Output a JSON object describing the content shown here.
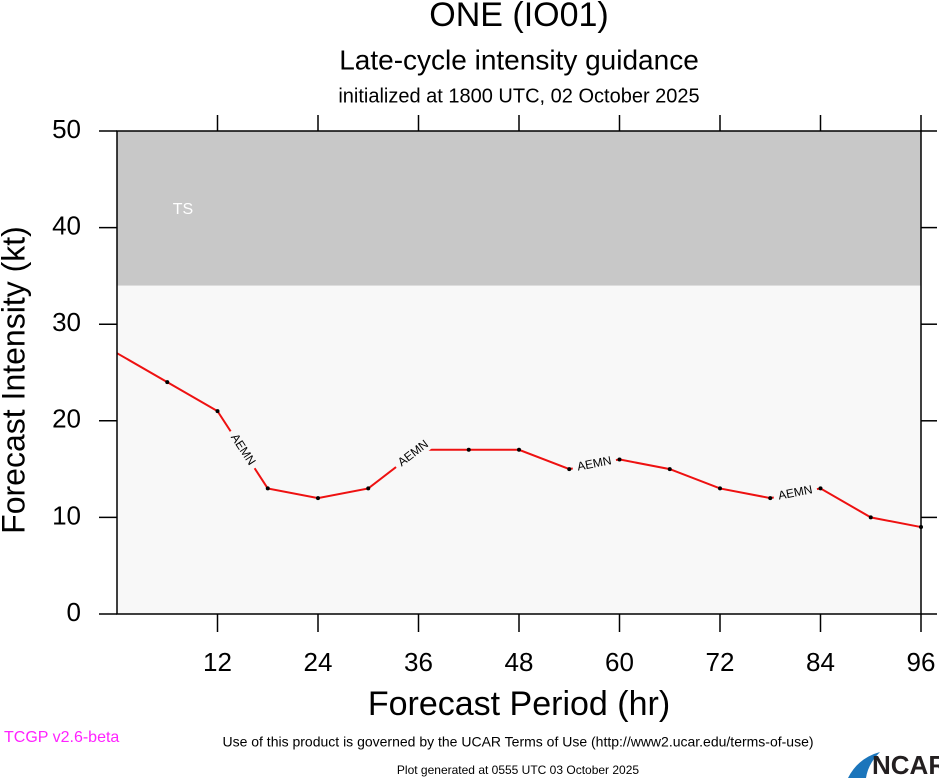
{
  "chart_data": {
    "type": "line",
    "title": "ONE (IO01)",
    "subtitle": "Late-cycle intensity guidance",
    "initialized": "initialized at 1800 UTC, 02 October 2025",
    "x_label": "Forecast Period (hr)",
    "y_label": "Forecast Intensity (kt)",
    "x": [
      0,
      6,
      12,
      18,
      24,
      30,
      36,
      42,
      48,
      54,
      60,
      66,
      72,
      78,
      84,
      90,
      96
    ],
    "series": [
      {
        "name": "AEMN",
        "color": "#ee1111",
        "values": [
          27,
          24,
          21,
          13,
          12,
          13,
          17,
          17,
          17,
          15,
          16,
          15,
          13,
          12,
          13,
          10,
          9
        ]
      }
    ],
    "xlim": [
      0,
      96
    ],
    "xticks": [
      12,
      24,
      36,
      48,
      60,
      72,
      84,
      96
    ],
    "ylim": [
      0,
      50
    ],
    "yticks": [
      0,
      10,
      20,
      30,
      40,
      50
    ],
    "bands": [
      {
        "label": "TS",
        "from": 34,
        "to": 50,
        "color": "#c8c8c8"
      }
    ],
    "background": "#f8f8f8",
    "terms": "Use of this product is governed by the UCAR Terms of Use (http://www2.ucar.edu/terms-of-use)",
    "version": "TCGP v2.6-beta",
    "generated": "Plot generated at 0555 UTC   03 October 2025",
    "logo": "NCAR"
  }
}
